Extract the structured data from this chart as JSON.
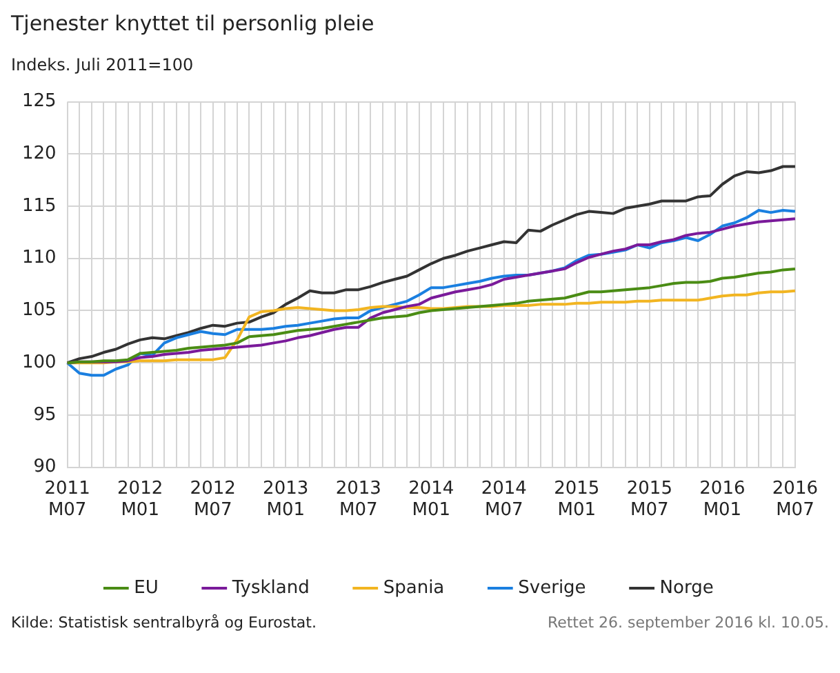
{
  "chart_data": {
    "type": "line",
    "title": "Tjenester knyttet til personlig pleie",
    "ylabel": "Indeks. Juli 2011=100",
    "categories": [
      "2011 M07",
      null,
      null,
      null,
      null,
      null,
      "2012 M01",
      null,
      null,
      null,
      null,
      null,
      "2012 M07",
      null,
      null,
      null,
      null,
      null,
      "2013 M01",
      null,
      null,
      null,
      null,
      null,
      "2013 M07",
      null,
      null,
      null,
      null,
      null,
      "2014 M01",
      null,
      null,
      null,
      null,
      null,
      "2014 M07",
      null,
      null,
      null,
      null,
      null,
      "2015 M01",
      null,
      null,
      null,
      null,
      null,
      "2015 M07",
      null,
      null,
      null,
      null,
      null,
      "2016 M01",
      null,
      null,
      null,
      null,
      null,
      "2016 M07"
    ],
    "series": [
      {
        "name": "EU",
        "color": "#4a8c14",
        "values": [
          100,
          100.1,
          100.1,
          100.2,
          100.2,
          100.3,
          100.9,
          101.0,
          101.1,
          101.2,
          101.4,
          101.5,
          101.6,
          101.7,
          101.9,
          102.5,
          102.6,
          102.7,
          102.9,
          103.1,
          103.2,
          103.3,
          103.5,
          103.7,
          103.9,
          104.1,
          104.3,
          104.4,
          104.5,
          104.8,
          105.0,
          105.1,
          105.2,
          105.3,
          105.4,
          105.5,
          105.6,
          105.7,
          105.9,
          106.0,
          106.1,
          106.2,
          106.5,
          106.8,
          106.8,
          106.9,
          107.0,
          107.1,
          107.2,
          107.4,
          107.6,
          107.7,
          107.7,
          107.8,
          108.1,
          108.2,
          108.4,
          108.6,
          108.7,
          108.9,
          109.0
        ]
      },
      {
        "name": "Tyskland",
        "color": "#7a1a9a",
        "values": [
          100,
          100.1,
          100.1,
          100.1,
          100.1,
          100.2,
          100.5,
          100.6,
          100.8,
          100.9,
          101.0,
          101.2,
          101.3,
          101.4,
          101.5,
          101.6,
          101.7,
          101.9,
          102.1,
          102.4,
          102.6,
          102.9,
          103.2,
          103.4,
          103.4,
          104.3,
          104.8,
          105.1,
          105.4,
          105.6,
          106.2,
          106.5,
          106.8,
          107.0,
          107.2,
          107.5,
          108.0,
          108.2,
          108.4,
          108.6,
          108.8,
          109.0,
          109.6,
          110.1,
          110.4,
          110.7,
          110.9,
          111.3,
          111.3,
          111.6,
          111.8,
          112.2,
          112.4,
          112.5,
          112.8,
          113.1,
          113.3,
          113.5,
          113.6,
          113.7,
          113.8
        ]
      },
      {
        "name": "Spania",
        "color": "#f2b521",
        "values": [
          100,
          100,
          100,
          100,
          100.1,
          100.1,
          100.2,
          100.2,
          100.2,
          100.3,
          100.3,
          100.3,
          100.3,
          100.5,
          102.2,
          104.4,
          104.9,
          105.0,
          105.2,
          105.3,
          105.2,
          105.1,
          105.0,
          105.0,
          105.1,
          105.3,
          105.4,
          105.4,
          105.3,
          105.3,
          105.2,
          105.2,
          105.3,
          105.4,
          105.4,
          105.4,
          105.5,
          105.5,
          105.5,
          105.6,
          105.6,
          105.6,
          105.7,
          105.7,
          105.8,
          105.8,
          105.8,
          105.9,
          105.9,
          106.0,
          106.0,
          106.0,
          106.0,
          106.2,
          106.4,
          106.5,
          106.5,
          106.7,
          106.8,
          106.8,
          106.9
        ]
      },
      {
        "name": "Sverige",
        "color": "#1a7fe0",
        "values": [
          100,
          99.0,
          98.8,
          98.8,
          99.4,
          99.8,
          100.9,
          100.7,
          101.9,
          102.4,
          102.7,
          103.0,
          102.8,
          102.7,
          103.2,
          103.2,
          103.2,
          103.3,
          103.5,
          103.6,
          103.8,
          104.0,
          104.2,
          104.3,
          104.3,
          105.0,
          105.3,
          105.6,
          105.9,
          106.5,
          107.2,
          107.2,
          107.4,
          107.6,
          107.8,
          108.1,
          108.3,
          108.4,
          108.4,
          108.6,
          108.8,
          109.1,
          109.8,
          110.3,
          110.4,
          110.6,
          110.8,
          111.3,
          111.0,
          111.5,
          111.7,
          112.0,
          111.7,
          112.3,
          113.1,
          113.4,
          113.9,
          114.6,
          114.4,
          114.6,
          114.5
        ]
      },
      {
        "name": "Norge",
        "color": "#333333",
        "values": [
          100,
          100.4,
          100.6,
          101.0,
          101.3,
          101.8,
          102.2,
          102.4,
          102.3,
          102.6,
          102.9,
          103.3,
          103.6,
          103.5,
          103.8,
          103.9,
          104.4,
          104.8,
          105.6,
          106.2,
          106.9,
          106.7,
          106.7,
          107.0,
          107.0,
          107.3,
          107.7,
          108.0,
          108.3,
          108.9,
          109.5,
          110.0,
          110.3,
          110.7,
          111.0,
          111.3,
          111.6,
          111.5,
          112.7,
          112.6,
          113.2,
          113.7,
          114.2,
          114.5,
          114.4,
          114.3,
          114.8,
          115.0,
          115.2,
          115.5,
          115.5,
          115.5,
          115.9,
          116.0,
          117.1,
          117.9,
          118.3,
          118.2,
          118.4,
          118.8,
          118.8
        ]
      }
    ],
    "ylim": [
      90,
      125
    ],
    "yticks": [
      90,
      95,
      100,
      105,
      110,
      115,
      120,
      125
    ],
    "grid": true,
    "legend": "bottom",
    "marker": "none",
    "line_style": "solid",
    "annotations": [
      "Kilde: Statistisk sentralbyrå og Eurostat.",
      "Rettet 26. september 2016 kl. 10.05."
    ]
  }
}
